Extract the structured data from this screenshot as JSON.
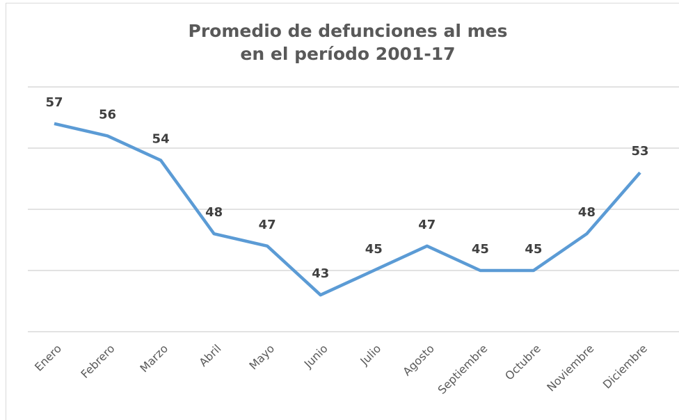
{
  "chart_data": {
    "type": "line",
    "title": [
      "Promedio de defunciones al mes",
      "en el período 2001-17"
    ],
    "categories": [
      "Enero",
      "Febrero",
      "Marzo",
      "Abril",
      "Mayo",
      "Junio",
      "Julio",
      "Agosto",
      "Septiembre",
      "Octubre",
      "Noviembre",
      "Diciembre"
    ],
    "series": [
      {
        "color": "#5b9bd5",
        "values": [
          57,
          56,
          54,
          48,
          47,
          43,
          45,
          47,
          45,
          45,
          48,
          53
        ]
      }
    ],
    "ylim": [
      40,
      60
    ],
    "yticks": [
      40,
      45,
      50,
      55,
      60
    ],
    "grid": true,
    "data_labels": true
  }
}
